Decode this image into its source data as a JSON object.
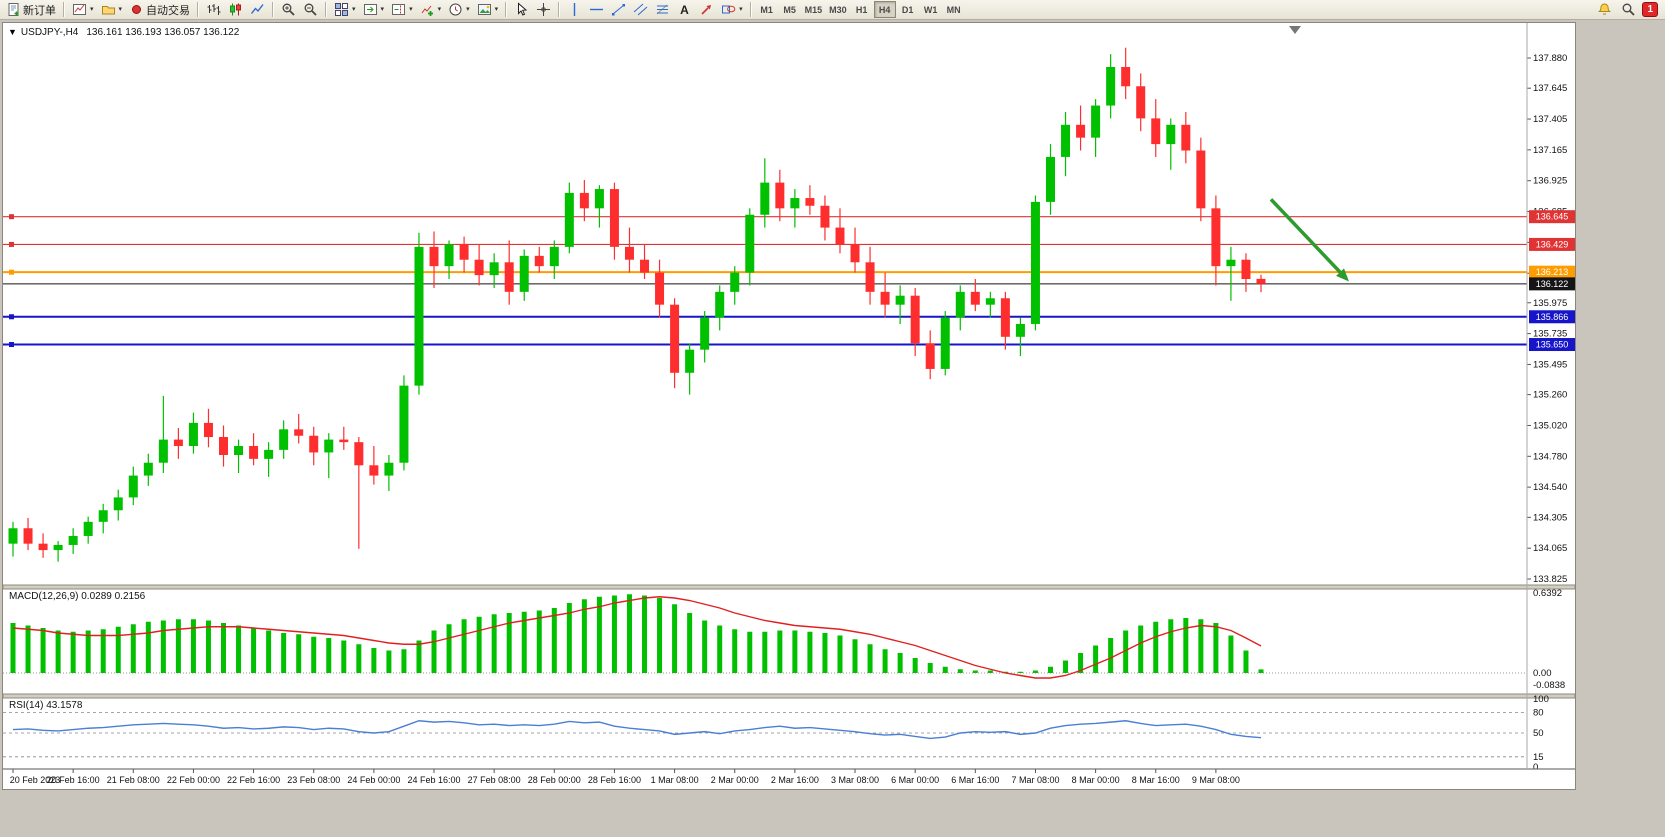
{
  "toolbar": {
    "items": [
      {
        "name": "new-order-button",
        "icon": "new-order-icon",
        "label": "新订单"
      },
      {
        "sep": true
      },
      {
        "name": "new-chart-button",
        "icon": "new-chart-icon",
        "dropdown": true
      },
      {
        "name": "profiles-button",
        "icon": "profiles-icon",
        "dropdown": true
      },
      {
        "name": "auto-trading-button",
        "icon": "auto-trading-icon",
        "label": "自动交易"
      },
      {
        "sep": true
      },
      {
        "name": "bar-chart-button",
        "icon": "bar-chart-icon"
      },
      {
        "name": "candlestick-chart-button",
        "icon": "candlestick-icon"
      },
      {
        "name": "line-chart-button",
        "icon": "line-chart-icon"
      },
      {
        "sep": true
      },
      {
        "name": "zoom-in-button",
        "icon": "zoom-in-icon"
      },
      {
        "name": "zoom-out-button",
        "icon": "zoom-out-icon"
      },
      {
        "sep": true
      },
      {
        "name": "tile-windows-button",
        "icon": "tile-windows-icon",
        "dropdown": true
      },
      {
        "name": "auto-scroll-button",
        "icon": "auto-scroll-icon",
        "dropdown": true
      },
      {
        "name": "chart-shift-button",
        "icon": "chart-shift-icon",
        "dropdown": true
      },
      {
        "name": "indicators-button",
        "icon": "indicators-icon",
        "dropdown": true
      },
      {
        "name": "periods-button",
        "icon": "periods-icon",
        "dropdown": true
      },
      {
        "name": "templates-button",
        "icon": "templates-icon",
        "dropdown": true
      },
      {
        "sep": true
      },
      {
        "name": "cursor-button",
        "icon": "cursor-icon"
      },
      {
        "name": "crosshair-button",
        "icon": "crosshair-icon"
      },
      {
        "sep": true
      },
      {
        "name": "vertical-line-button",
        "icon": "vertical-line-icon"
      },
      {
        "name": "horizontal-line-button",
        "icon": "horizontal-line-icon"
      },
      {
        "name": "trendline-button",
        "icon": "trendline-icon"
      },
      {
        "name": "equidistant-channel-button",
        "icon": "equidistant-channel-icon"
      },
      {
        "name": "fibonacci-button",
        "icon": "fibonacci-icon"
      },
      {
        "name": "text-button",
        "icon": "text-icon"
      },
      {
        "name": "arrows-button",
        "icon": "arrows-icon"
      },
      {
        "name": "shapes-button",
        "icon": "shapes-icon",
        "dropdown": true
      },
      {
        "sep": true
      }
    ],
    "timeframes": [
      "M1",
      "M5",
      "M15",
      "M30",
      "H1",
      "H4",
      "D1",
      "W1",
      "MN"
    ],
    "active_timeframe": "H4",
    "right_items": [
      {
        "name": "search-button",
        "icon": "search-icon"
      },
      {
        "name": "alerts-button",
        "icon": "alert-icon"
      }
    ],
    "badge_count": "1"
  },
  "chart": {
    "one_click_icon": "▼",
    "symbol": "USDJPY-,H4",
    "ohlc": "136.161 136.193 136.057 136.122",
    "macd_label": "MACD(12,26,9) 0.0289 0.2156",
    "rsi_label": "RSI(14) 43.1578"
  },
  "colors": {
    "candle_up": "#00c000",
    "candle_down": "#ff2e2e",
    "macd_hist": "#00c000",
    "macd_signal": "#e02020",
    "rsi_line": "#4a7fd4",
    "resistance": "#e03434",
    "pivot": "#ff9c00",
    "support": "#1616c8",
    "current_price": "#151515",
    "arrow": "#2e9b2e"
  },
  "chart_data": {
    "type": "candlestick",
    "symbol": "USDJPY",
    "timeframe": "H4",
    "title": "USDJPY-,H4",
    "ylim": [
      133.825,
      137.88
    ],
    "current": {
      "open": 136.161,
      "high": 136.193,
      "low": 136.057,
      "close": 136.122
    },
    "price_axis_ticks": [
      "137.880",
      "137.645",
      "137.405",
      "137.165",
      "136.925",
      "136.685",
      "136.445",
      "136.205",
      "135.975",
      "135.735",
      "135.495",
      "135.260",
      "135.020",
      "134.780",
      "134.540",
      "134.305",
      "134.065",
      "133.825"
    ],
    "time_axis_labels": [
      "20 Feb 2023",
      "20 Feb 16:00",
      "21 Feb 08:00",
      "22 Feb 00:00",
      "22 Feb 16:00",
      "23 Feb 08:00",
      "24 Feb 00:00",
      "24 Feb 16:00",
      "27 Feb 08:00",
      "28 Feb 00:00",
      "28 Feb 16:00",
      "1 Mar 08:00",
      "2 Mar 00:00",
      "2 Mar 16:00",
      "3 Mar 08:00",
      "6 Mar 00:00",
      "6 Mar 16:00",
      "7 Mar 08:00",
      "8 Mar 00:00",
      "8 Mar 16:00",
      "9 Mar 08:00"
    ],
    "candles": [
      [
        134.1,
        134.27,
        134.0,
        134.22
      ],
      [
        134.22,
        134.3,
        134.05,
        134.1
      ],
      [
        134.1,
        134.18,
        133.99,
        134.05
      ],
      [
        134.05,
        134.12,
        133.96,
        134.09
      ],
      [
        134.09,
        134.22,
        134.02,
        134.16
      ],
      [
        134.16,
        134.31,
        134.1,
        134.27
      ],
      [
        134.27,
        134.41,
        134.18,
        134.36
      ],
      [
        134.36,
        134.52,
        134.28,
        134.46
      ],
      [
        134.46,
        134.7,
        134.4,
        134.63
      ],
      [
        134.63,
        134.8,
        134.55,
        134.73
      ],
      [
        134.73,
        135.25,
        134.65,
        134.91
      ],
      [
        134.91,
        135.0,
        134.76,
        134.86
      ],
      [
        134.86,
        135.12,
        134.8,
        135.04
      ],
      [
        135.04,
        135.15,
        134.85,
        134.93
      ],
      [
        134.93,
        135.02,
        134.7,
        134.79
      ],
      [
        134.79,
        134.91,
        134.65,
        134.86
      ],
      [
        134.86,
        134.96,
        134.71,
        134.76
      ],
      [
        134.76,
        134.89,
        134.62,
        134.83
      ],
      [
        134.83,
        135.06,
        134.76,
        134.99
      ],
      [
        134.99,
        135.11,
        134.88,
        134.94
      ],
      [
        134.94,
        135.01,
        134.71,
        134.81
      ],
      [
        134.81,
        134.96,
        134.61,
        134.91
      ],
      [
        134.91,
        135.01,
        134.83,
        134.89
      ],
      [
        134.89,
        134.93,
        134.06,
        134.71
      ],
      [
        134.71,
        134.86,
        134.56,
        134.63
      ],
      [
        134.63,
        134.79,
        134.51,
        134.73
      ],
      [
        134.73,
        135.41,
        134.67,
        135.33
      ],
      [
        135.33,
        136.52,
        135.26,
        136.41
      ],
      [
        136.41,
        136.53,
        136.09,
        136.26
      ],
      [
        136.26,
        136.46,
        136.16,
        136.43
      ],
      [
        136.43,
        136.49,
        136.21,
        136.31
      ],
      [
        136.31,
        136.43,
        136.11,
        136.19
      ],
      [
        136.19,
        136.36,
        136.09,
        136.29
      ],
      [
        136.29,
        136.46,
        135.96,
        136.06
      ],
      [
        136.06,
        136.39,
        135.99,
        136.34
      ],
      [
        136.34,
        136.41,
        136.21,
        136.26
      ],
      [
        136.26,
        136.46,
        136.16,
        136.41
      ],
      [
        136.41,
        136.91,
        136.36,
        136.83
      ],
      [
        136.83,
        136.93,
        136.61,
        136.71
      ],
      [
        136.71,
        136.89,
        136.56,
        136.86
      ],
      [
        136.86,
        136.91,
        136.31,
        136.41
      ],
      [
        136.41,
        136.56,
        136.21,
        136.31
      ],
      [
        136.31,
        136.43,
        136.16,
        136.21
      ],
      [
        136.21,
        136.31,
        135.86,
        135.96
      ],
      [
        135.96,
        136.01,
        135.31,
        135.43
      ],
      [
        135.43,
        135.66,
        135.26,
        135.61
      ],
      [
        135.61,
        135.91,
        135.51,
        135.86
      ],
      [
        135.86,
        136.11,
        135.76,
        136.06
      ],
      [
        136.06,
        136.26,
        135.96,
        136.21
      ],
      [
        136.21,
        136.71,
        136.11,
        136.66
      ],
      [
        136.66,
        137.1,
        136.56,
        136.91
      ],
      [
        136.91,
        137.01,
        136.61,
        136.71
      ],
      [
        136.71,
        136.86,
        136.56,
        136.79
      ],
      [
        136.79,
        136.89,
        136.66,
        136.73
      ],
      [
        136.73,
        136.81,
        136.46,
        136.56
      ],
      [
        136.56,
        136.71,
        136.36,
        136.43
      ],
      [
        136.43,
        136.56,
        136.21,
        136.29
      ],
      [
        136.29,
        136.41,
        135.96,
        136.06
      ],
      [
        136.06,
        136.21,
        135.86,
        135.96
      ],
      [
        135.96,
        136.11,
        135.81,
        136.03
      ],
      [
        136.03,
        136.09,
        135.56,
        135.66
      ],
      [
        135.66,
        135.76,
        135.38,
        135.46
      ],
      [
        135.46,
        135.91,
        135.41,
        135.86
      ],
      [
        135.86,
        136.11,
        135.76,
        136.06
      ],
      [
        136.06,
        136.16,
        135.91,
        135.96
      ],
      [
        135.96,
        136.06,
        135.86,
        136.01
      ],
      [
        136.01,
        136.06,
        135.61,
        135.71
      ],
      [
        135.71,
        135.86,
        135.56,
        135.81
      ],
      [
        135.81,
        136.81,
        135.76,
        136.76
      ],
      [
        136.76,
        137.21,
        136.66,
        137.11
      ],
      [
        137.11,
        137.46,
        136.96,
        137.36
      ],
      [
        137.36,
        137.51,
        137.16,
        137.26
      ],
      [
        137.26,
        137.56,
        137.11,
        137.51
      ],
      [
        137.51,
        137.91,
        137.41,
        137.81
      ],
      [
        137.81,
        137.96,
        137.56,
        137.66
      ],
      [
        137.66,
        137.76,
        137.31,
        137.41
      ],
      [
        137.41,
        137.56,
        137.11,
        137.21
      ],
      [
        137.21,
        137.41,
        137.01,
        137.36
      ],
      [
        137.36,
        137.46,
        137.06,
        137.16
      ],
      [
        137.16,
        137.26,
        136.61,
        136.71
      ],
      [
        136.71,
        136.81,
        136.11,
        136.26
      ],
      [
        136.26,
        136.41,
        135.99,
        136.31
      ],
      [
        136.31,
        136.36,
        136.06,
        136.16
      ],
      [
        136.161,
        136.193,
        136.057,
        136.122
      ]
    ],
    "hlines": [
      {
        "label": "136.645",
        "price": 136.645,
        "color": "#e03434",
        "width": 1.2
      },
      {
        "label": "136.429",
        "price": 136.429,
        "color": "#e03434",
        "width": 1.2
      },
      {
        "label": "136.213",
        "price": 136.213,
        "color": "#ff9c00",
        "width": 2
      },
      {
        "label": "135.866",
        "price": 135.866,
        "color": "#1616c8",
        "width": 2
      },
      {
        "label": "135.650",
        "price": 135.65,
        "color": "#1616c8",
        "width": 2
      }
    ],
    "current_price_line": {
      "label": "136.122",
      "price": 136.122,
      "color": "#151515"
    },
    "arrow": {
      "name": "sell-arrow",
      "color": "#2e9b2e",
      "from_price": 136.78,
      "to_price": 136.14
    },
    "macd": {
      "label": "MACD(12,26,9)",
      "values_label": "0.0289 0.2156",
      "axis_labels": [
        "0.6392",
        "0.00",
        "-0.0838"
      ],
      "histogram": [
        0.4,
        0.38,
        0.36,
        0.34,
        0.33,
        0.34,
        0.35,
        0.37,
        0.39,
        0.41,
        0.42,
        0.43,
        0.43,
        0.42,
        0.4,
        0.38,
        0.36,
        0.34,
        0.32,
        0.31,
        0.29,
        0.28,
        0.26,
        0.23,
        0.2,
        0.18,
        0.19,
        0.26,
        0.34,
        0.39,
        0.43,
        0.45,
        0.47,
        0.48,
        0.49,
        0.5,
        0.52,
        0.56,
        0.59,
        0.61,
        0.62,
        0.63,
        0.62,
        0.6,
        0.55,
        0.48,
        0.42,
        0.38,
        0.35,
        0.33,
        0.33,
        0.34,
        0.34,
        0.33,
        0.32,
        0.3,
        0.27,
        0.23,
        0.19,
        0.16,
        0.12,
        0.08,
        0.05,
        0.03,
        0.02,
        0.02,
        0.01,
        0.01,
        0.02,
        0.05,
        0.1,
        0.16,
        0.22,
        0.28,
        0.34,
        0.38,
        0.41,
        0.43,
        0.44,
        0.43,
        0.4,
        0.3,
        0.18,
        0.0289
      ],
      "signal": [
        0.36,
        0.35,
        0.34,
        0.32,
        0.31,
        0.3,
        0.3,
        0.3,
        0.31,
        0.32,
        0.34,
        0.35,
        0.36,
        0.37,
        0.37,
        0.37,
        0.36,
        0.35,
        0.34,
        0.33,
        0.32,
        0.31,
        0.3,
        0.28,
        0.26,
        0.24,
        0.23,
        0.23,
        0.25,
        0.28,
        0.31,
        0.34,
        0.37,
        0.4,
        0.42,
        0.44,
        0.46,
        0.48,
        0.51,
        0.53,
        0.56,
        0.58,
        0.6,
        0.61,
        0.6,
        0.58,
        0.55,
        0.52,
        0.48,
        0.45,
        0.42,
        0.4,
        0.38,
        0.37,
        0.36,
        0.35,
        0.33,
        0.31,
        0.28,
        0.25,
        0.22,
        0.18,
        0.14,
        0.1,
        0.06,
        0.03,
        0.0,
        -0.02,
        -0.04,
        -0.04,
        -0.02,
        0.02,
        0.07,
        0.12,
        0.18,
        0.24,
        0.29,
        0.33,
        0.36,
        0.38,
        0.37,
        0.34,
        0.28,
        0.2156
      ]
    },
    "rsi": {
      "label": "RSI(14)",
      "value_label": "43.1578",
      "axis_labels": [
        "100",
        "80",
        "50",
        "15",
        "0"
      ],
      "levels": [
        80,
        50,
        15
      ],
      "values": [
        55,
        56,
        54,
        53,
        55,
        57,
        58,
        60,
        62,
        63,
        64,
        63,
        62,
        60,
        57,
        58,
        56,
        57,
        59,
        58,
        55,
        57,
        56,
        52,
        50,
        52,
        60,
        68,
        66,
        67,
        65,
        62,
        63,
        61,
        62,
        61,
        63,
        67,
        65,
        66,
        60,
        57,
        55,
        53,
        48,
        50,
        52,
        49,
        53,
        55,
        58,
        60,
        57,
        58,
        56,
        54,
        52,
        49,
        47,
        48,
        45,
        42,
        44,
        50,
        52,
        51,
        52,
        48,
        50,
        57,
        61,
        63,
        64,
        66,
        68,
        64,
        61,
        62,
        63,
        60,
        55,
        48,
        45,
        43.16
      ]
    }
  }
}
